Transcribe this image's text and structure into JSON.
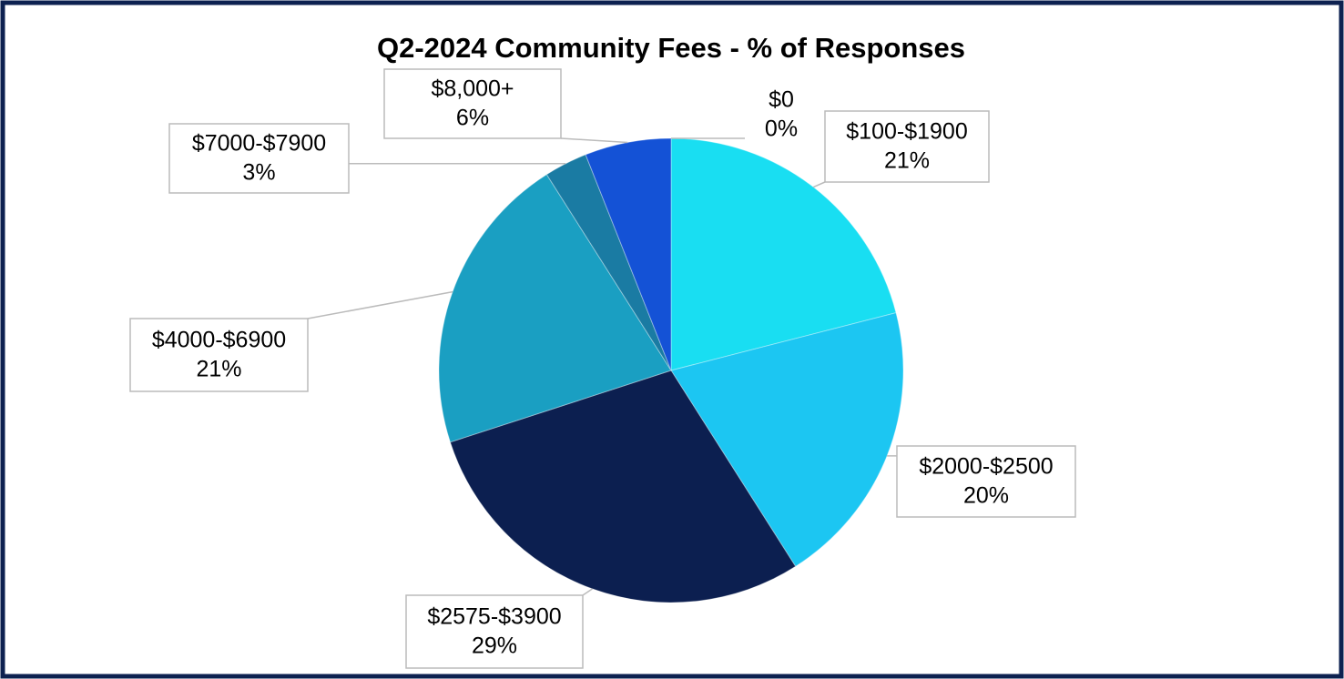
{
  "chart_data": {
    "type": "pie",
    "title": "Q2-2024 Community Fees - % of Responses",
    "categories": [
      "$0",
      "$100-$1900",
      "$2000-$2500",
      "$2575-$3900",
      "$4000-$6900",
      "$7000-$7900",
      "$8,000+"
    ],
    "values": [
      0,
      21,
      20,
      29,
      21,
      3,
      6
    ],
    "value_labels": [
      "0%",
      "21%",
      "20%",
      "29%",
      "21%",
      "3%",
      "6%"
    ],
    "colors": [
      "#30f0ff",
      "#19def2",
      "#1cc6f2",
      "#0c1f50",
      "#1a9fc2",
      "#1a7ba3",
      "#1452d6"
    ]
  }
}
